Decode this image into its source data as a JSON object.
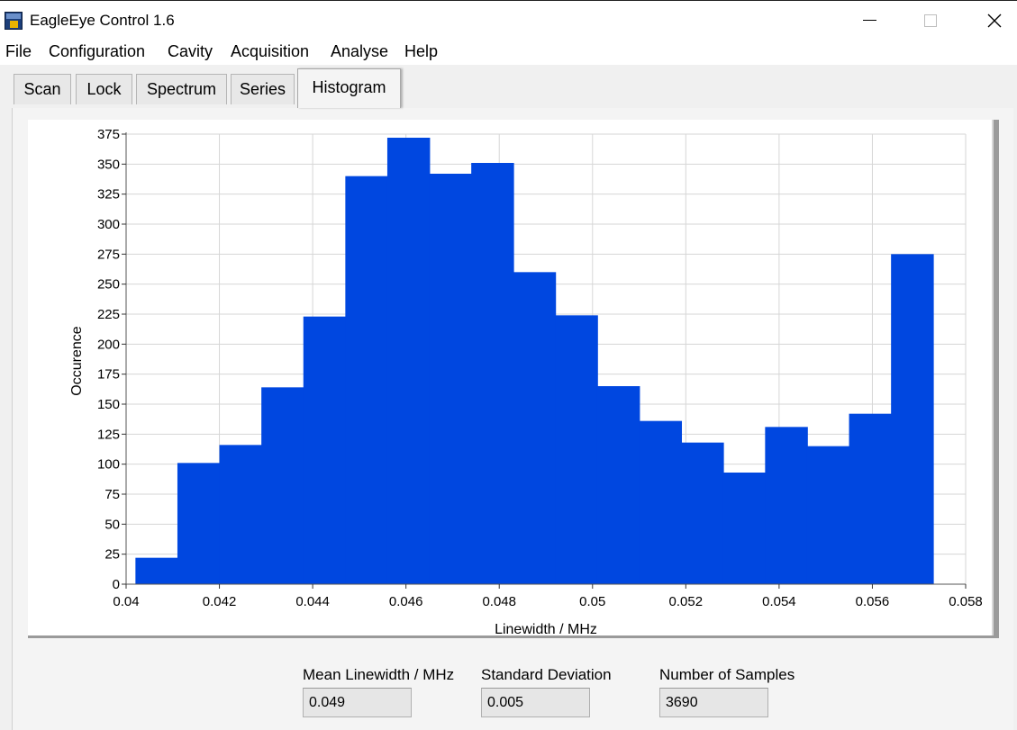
{
  "window": {
    "title": "EagleEye Control 1.6",
    "icon": "app-icon",
    "controls": [
      "minimize-icon",
      "maximize-icon",
      "close-icon"
    ]
  },
  "menu": [
    "File",
    "Configuration",
    "Cavity",
    "Acquisition",
    "Analyse",
    "Help"
  ],
  "tabs": [
    {
      "label": "Scan",
      "active": false
    },
    {
      "label": "Lock",
      "active": false
    },
    {
      "label": "Spectrum",
      "active": false
    },
    {
      "label": "Series",
      "active": false
    },
    {
      "label": "Histogram",
      "active": true
    }
  ],
  "chart_data": {
    "type": "bar",
    "xlabel": "Linewidth / MHz",
    "ylabel": "Occurence",
    "xlim": [
      0.04,
      0.058
    ],
    "ylim": [
      0,
      375
    ],
    "x_ticks": [
      "0.04",
      "0.042",
      "0.044",
      "0.046",
      "0.048",
      "0.05",
      "0.052",
      "0.054",
      "0.056",
      "0.058"
    ],
    "y_ticks": [
      "0",
      "25",
      "50",
      "75",
      "100",
      "125",
      "150",
      "175",
      "200",
      "225",
      "250",
      "275",
      "300",
      "325",
      "350",
      "375"
    ],
    "grid": true,
    "bar_color": "#0047e0",
    "bin_width": 0.000905,
    "bins": [
      {
        "start": 0.0402,
        "value": 22
      },
      {
        "start": 0.0411,
        "value": 101
      },
      {
        "start": 0.042,
        "value": 116
      },
      {
        "start": 0.0429,
        "value": 164
      },
      {
        "start": 0.0438,
        "value": 223
      },
      {
        "start": 0.0447,
        "value": 340
      },
      {
        "start": 0.0456,
        "value": 372
      },
      {
        "start": 0.0465,
        "value": 342
      },
      {
        "start": 0.0474,
        "value": 351
      },
      {
        "start": 0.0483,
        "value": 260
      },
      {
        "start": 0.0492,
        "value": 224
      },
      {
        "start": 0.0501,
        "value": 165
      },
      {
        "start": 0.051,
        "value": 136
      },
      {
        "start": 0.0519,
        "value": 118
      },
      {
        "start": 0.0528,
        "value": 93
      },
      {
        "start": 0.0537,
        "value": 131
      },
      {
        "start": 0.0546,
        "value": 115
      },
      {
        "start": 0.0555,
        "value": 142
      },
      {
        "start": 0.0564,
        "value": 275
      }
    ]
  },
  "stats": {
    "mean_label": "Mean Linewidth / MHz",
    "mean_value": "0.049",
    "std_label": "Standard Deviation",
    "std_value": "0.005",
    "samples_label": "Number of Samples",
    "samples_value": "3690"
  }
}
